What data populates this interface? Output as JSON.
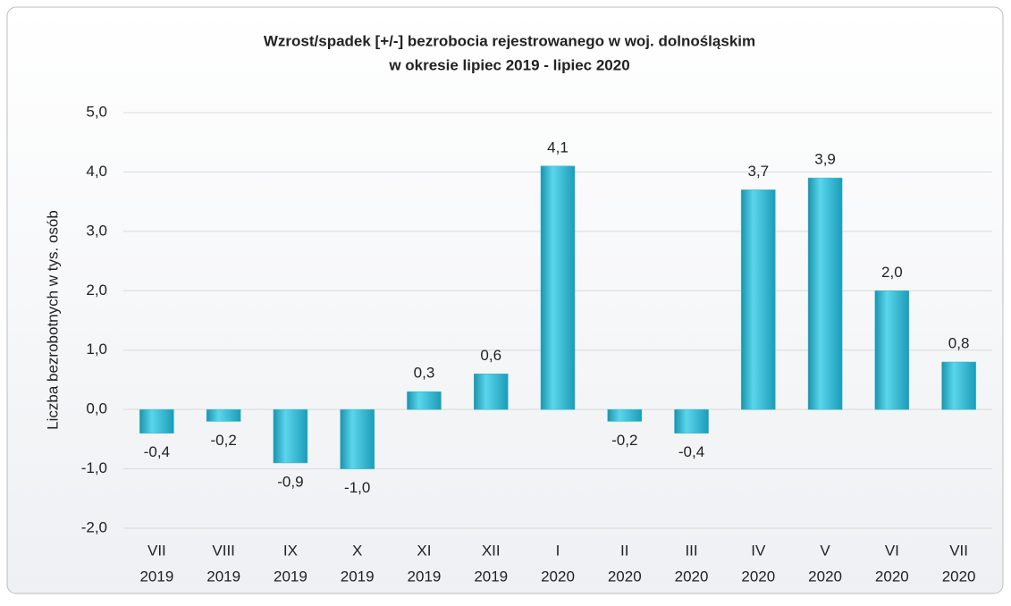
{
  "chart_data": {
    "type": "bar",
    "title": [
      "Wzrost/spadek [+/-] bezrobocia rejestrowanego w woj. dolnośląskim",
      "w okresie lipiec 2019 - lipiec 2020"
    ],
    "y_label": "Liczba bezrobotnych w tys. osób",
    "categories": [
      [
        "VII",
        "2019"
      ],
      [
        "VIII",
        "2019"
      ],
      [
        "IX",
        "2019"
      ],
      [
        "X",
        "2019"
      ],
      [
        "XI",
        "2019"
      ],
      [
        "XII",
        "2019"
      ],
      [
        "I",
        "2020"
      ],
      [
        "II",
        "2020"
      ],
      [
        "III",
        "2020"
      ],
      [
        "IV",
        "2020"
      ],
      [
        "V",
        "2020"
      ],
      [
        "VI",
        "2020"
      ],
      [
        "VII",
        "2020"
      ]
    ],
    "values": [
      -0.4,
      -0.2,
      -0.9,
      -1.0,
      0.3,
      0.6,
      4.1,
      -0.2,
      -0.4,
      3.7,
      3.9,
      2.0,
      0.8
    ],
    "value_labels": [
      "-0,4",
      "-0,2",
      "-0,9",
      "-1,0",
      "0,3",
      "0,6",
      "4,1",
      "-0,2",
      "-0,4",
      "3,7",
      "3,9",
      "2,0",
      "0,8"
    ],
    "color": "#2fb4d0",
    "ylim": [
      -2,
      5
    ],
    "yticks": [
      {
        "value": -2,
        "label": "-2,0"
      },
      {
        "value": -1,
        "label": "-1,0"
      },
      {
        "value": 0,
        "label": "0,0"
      },
      {
        "value": 1,
        "label": "1,0"
      },
      {
        "value": 2,
        "label": "2,0"
      },
      {
        "value": 3,
        "label": "3,0"
      },
      {
        "value": 4,
        "label": "4,0"
      },
      {
        "value": 5,
        "label": "5,0"
      }
    ],
    "grid": true
  }
}
